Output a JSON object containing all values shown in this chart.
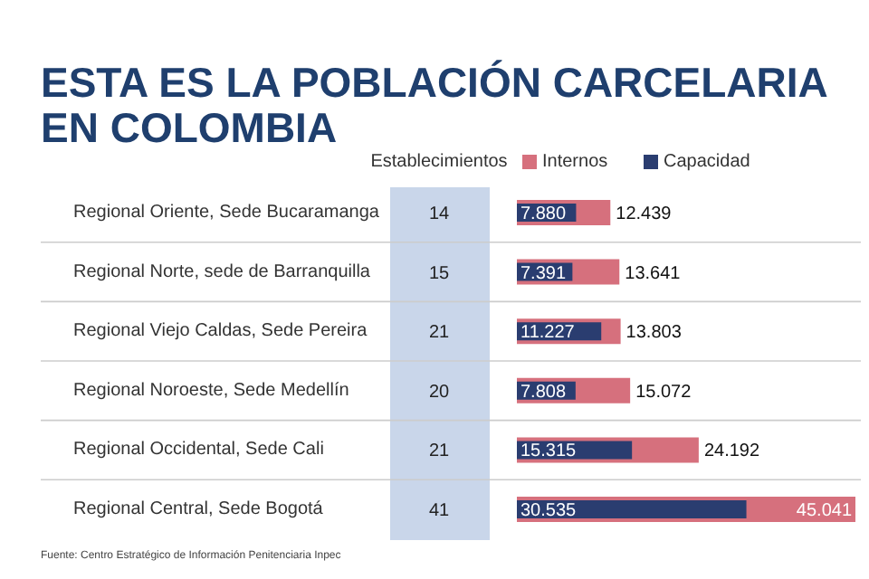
{
  "chart_data": {
    "type": "bar",
    "orientation": "horizontal",
    "title": "ESTA ES LA POBLACIÓN CARCELARIA\nEN COLOMBIA",
    "categories": [
      "Regional Oriente, Sede Bucaramanga",
      "Regional Norte, sede de Barranquilla",
      "Regional Viejo Caldas, Sede Pereira",
      "Regional Noroeste, Sede Medellín",
      "Regional Occidental, Sede Cali",
      "Regional Central, Sede Bogotá"
    ],
    "series": [
      {
        "name": "Internos",
        "color": "#d6707d",
        "values": [
          12439,
          13641,
          13803,
          15072,
          24192,
          45041
        ],
        "value_labels": [
          "12.439",
          "13.641",
          "13.803",
          "15.072",
          "24.192",
          "45.041"
        ]
      },
      {
        "name": "Capacidad",
        "color": "#2a3d70",
        "values": [
          7880,
          7391,
          11227,
          7808,
          15315,
          30535
        ],
        "value_labels": [
          "7.880",
          "7.391",
          "11.227",
          "7.808",
          "15.315",
          "30.535"
        ]
      }
    ],
    "legend": "top",
    "annotations": [
      "Establecimientos",
      "14",
      "15",
      "21",
      "20",
      "21",
      "41",
      "Fuente: Centro Estratégico de Información Penitenciaria Inpec"
    ]
  }
}
